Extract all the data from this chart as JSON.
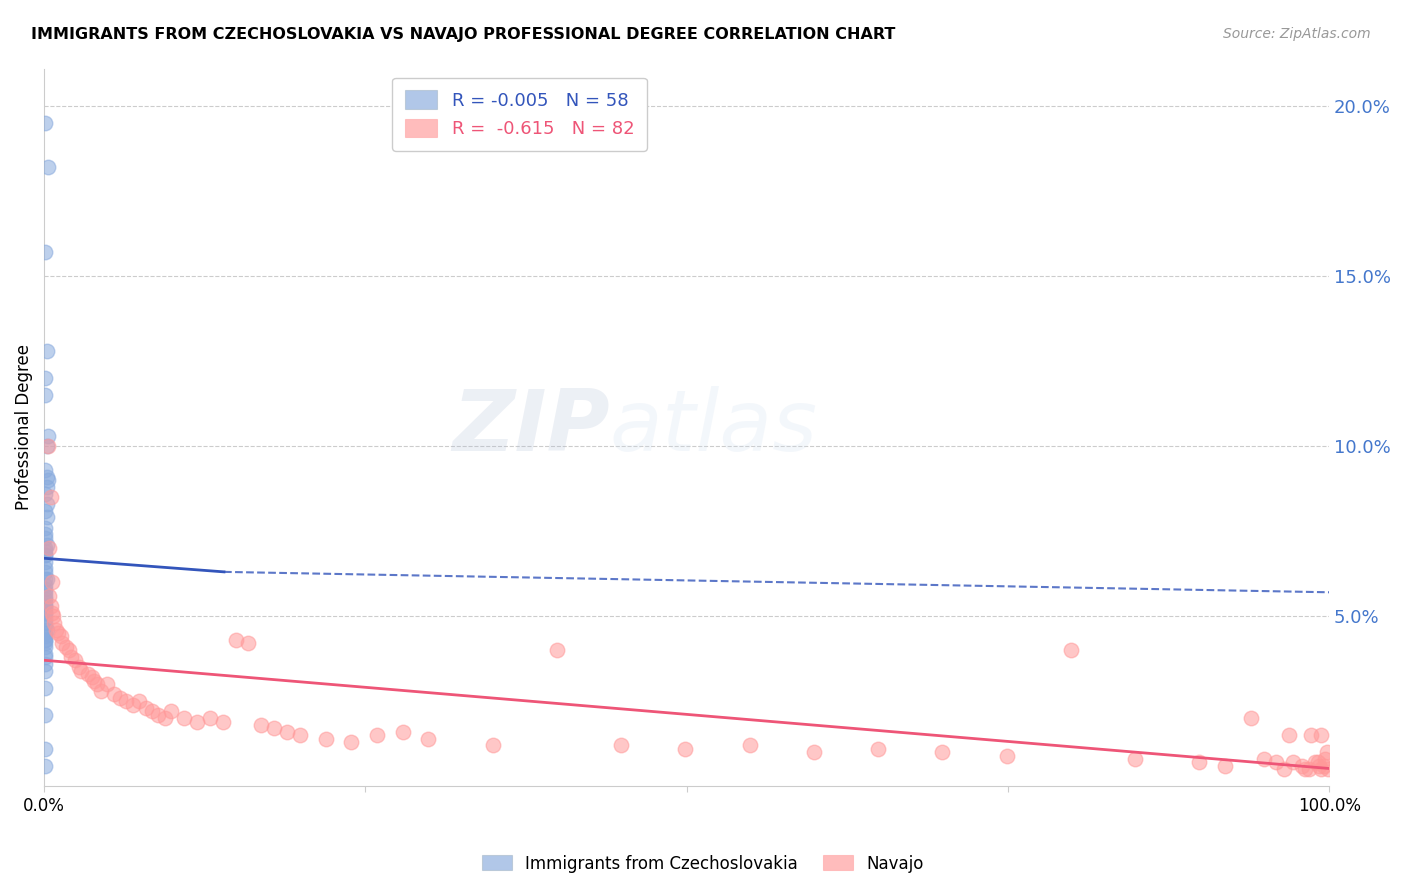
{
  "title": "IMMIGRANTS FROM CZECHOSLOVAKIA VS NAVAJO PROFESSIONAL DEGREE CORRELATION CHART",
  "source": "Source: ZipAtlas.com",
  "ylabel": "Professional Degree",
  "legend_blue_label": "Immigrants from Czechoslovakia",
  "legend_pink_label": "Navajo",
  "legend_blue_r": "-0.005",
  "legend_blue_n": "58",
  "legend_pink_r": "-0.615",
  "legend_pink_n": "82",
  "blue_color": "#88AADD",
  "pink_color": "#FF9999",
  "trendline_blue_color": "#3355BB",
  "trendline_pink_color": "#EE5577",
  "watermark_zip": "ZIP",
  "watermark_atlas": "atlas",
  "xlim": [
    0.0,
    1.0
  ],
  "ylim": [
    0.0,
    0.211
  ],
  "blue_scatter_x": [
    0.001,
    0.003,
    0.001,
    0.002,
    0.001,
    0.001,
    0.003,
    0.002,
    0.001,
    0.002,
    0.003,
    0.002,
    0.001,
    0.002,
    0.001,
    0.002,
    0.001,
    0.001,
    0.001,
    0.002,
    0.001,
    0.001,
    0.001,
    0.001,
    0.001,
    0.001,
    0.001,
    0.002,
    0.001,
    0.001,
    0.001,
    0.001,
    0.001,
    0.001,
    0.001,
    0.001,
    0.001,
    0.001,
    0.001,
    0.001,
    0.001,
    0.001,
    0.001,
    0.002,
    0.001,
    0.001,
    0.001,
    0.001,
    0.001,
    0.001,
    0.001,
    0.001,
    0.001,
    0.001,
    0.001,
    0.001,
    0.001,
    0.001
  ],
  "blue_scatter_y": [
    0.195,
    0.182,
    0.157,
    0.128,
    0.12,
    0.115,
    0.103,
    0.1,
    0.093,
    0.091,
    0.09,
    0.088,
    0.086,
    0.083,
    0.081,
    0.079,
    0.076,
    0.074,
    0.073,
    0.071,
    0.07,
    0.069,
    0.068,
    0.068,
    0.066,
    0.064,
    0.063,
    0.061,
    0.061,
    0.059,
    0.058,
    0.057,
    0.056,
    0.055,
    0.054,
    0.053,
    0.053,
    0.052,
    0.051,
    0.051,
    0.049,
    0.048,
    0.047,
    0.046,
    0.045,
    0.044,
    0.043,
    0.043,
    0.042,
    0.041,
    0.039,
    0.038,
    0.036,
    0.034,
    0.029,
    0.021,
    0.011,
    0.006
  ],
  "pink_scatter_x": [
    0.003,
    0.005,
    0.004,
    0.006,
    0.004,
    0.005,
    0.006,
    0.007,
    0.008,
    0.009,
    0.011,
    0.013,
    0.014,
    0.017,
    0.019,
    0.021,
    0.024,
    0.027,
    0.029,
    0.034,
    0.037,
    0.039,
    0.041,
    0.044,
    0.049,
    0.054,
    0.059,
    0.064,
    0.069,
    0.074,
    0.079,
    0.084,
    0.089,
    0.094,
    0.099,
    0.109,
    0.119,
    0.129,
    0.139,
    0.149,
    0.159,
    0.169,
    0.179,
    0.189,
    0.199,
    0.219,
    0.239,
    0.259,
    0.279,
    0.299,
    0.349,
    0.399,
    0.449,
    0.499,
    0.549,
    0.599,
    0.649,
    0.699,
    0.749,
    0.799,
    0.849,
    0.899,
    0.919,
    0.939,
    0.949,
    0.959,
    0.969,
    0.979,
    0.984,
    0.989,
    0.992,
    0.994,
    0.965,
    0.972,
    0.981,
    0.986,
    0.991,
    0.994,
    0.996,
    0.997,
    0.998,
    0.999
  ],
  "pink_scatter_y": [
    0.1,
    0.085,
    0.07,
    0.06,
    0.056,
    0.053,
    0.051,
    0.05,
    0.048,
    0.046,
    0.045,
    0.044,
    0.042,
    0.041,
    0.04,
    0.038,
    0.037,
    0.035,
    0.034,
    0.033,
    0.032,
    0.031,
    0.03,
    0.028,
    0.03,
    0.027,
    0.026,
    0.025,
    0.024,
    0.025,
    0.023,
    0.022,
    0.021,
    0.02,
    0.022,
    0.02,
    0.019,
    0.02,
    0.019,
    0.043,
    0.042,
    0.018,
    0.017,
    0.016,
    0.015,
    0.014,
    0.013,
    0.015,
    0.016,
    0.014,
    0.012,
    0.04,
    0.012,
    0.011,
    0.012,
    0.01,
    0.011,
    0.01,
    0.009,
    0.04,
    0.008,
    0.007,
    0.006,
    0.02,
    0.008,
    0.007,
    0.015,
    0.006,
    0.005,
    0.007,
    0.006,
    0.015,
    0.005,
    0.007,
    0.005,
    0.015,
    0.007,
    0.005,
    0.006,
    0.008,
    0.01,
    0.005
  ],
  "grid_color": "#CCCCCC",
  "background_color": "#FFFFFF",
  "blue_trend_x": [
    0.0,
    0.15
  ],
  "blue_trend_y_start": 0.067,
  "blue_trend_y_end": 0.063,
  "pink_trend_x": [
    0.0,
    1.0
  ],
  "pink_trend_y_start": 0.046,
  "pink_trend_y_end": 0.018
}
